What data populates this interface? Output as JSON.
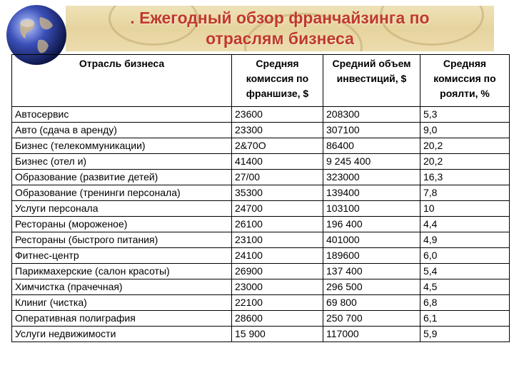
{
  "slide": {
    "title_line1": ". Ежегодный обзор франчайзинга по",
    "title_line2": "отраслям бизнеса",
    "accent_color": "#c0392b",
    "banner_color": "#e6d49e",
    "icon": "globe-icon"
  },
  "table": {
    "headers": [
      "Отрасль бизнеса",
      "Средняя комиссия по франшизе, $",
      "Средний объем инвестиций, $",
      "Средняя комиссия по роялти, %"
    ],
    "rows": [
      [
        "Автосервис",
        "23600",
        "208300",
        "5,3"
      ],
      [
        "Авто (сдача в аренду)",
        "23300",
        "307100",
        "9,0"
      ],
      [
        "Бизнес (телекоммуникации)",
        "2&70О",
        "86400",
        "20,2"
      ],
      [
        "Бизнес (отел и)",
        "41400",
        "9 245 400",
        "20,2"
      ],
      [
        "Образование (развитие детей)",
        "27/00",
        "323000",
        "16,3"
      ],
      [
        "Образование (тренинги персонала)",
        "35300",
        "139400",
        "7,8"
      ],
      [
        "Услуги персонала",
        "24700",
        "103100",
        "10"
      ],
      [
        "Рестораны (мороженое)",
        "26100",
        "196 400",
        "4,4"
      ],
      [
        "Рестораны (быстрого питания)",
        "23100",
        "401000",
        "4,9"
      ],
      [
        "Фитнес-центр",
        "24100",
        "189600",
        "6,0"
      ],
      [
        "Парикмахерские (салон красоты)",
        "26900",
        "137 400",
        "5,4"
      ],
      [
        "Химчистка (прачечная)",
        "23000",
        "296 500",
        "4,5"
      ],
      [
        "Клиниг (чистка)",
        "22100",
        "69 800",
        "6,8"
      ],
      [
        "Оперативная полиграфия",
        "28600",
        "250 700",
        "6,1"
      ],
      [
        "Услуги недвижимости",
        "15 900",
        "117000",
        "5,9"
      ]
    ]
  }
}
